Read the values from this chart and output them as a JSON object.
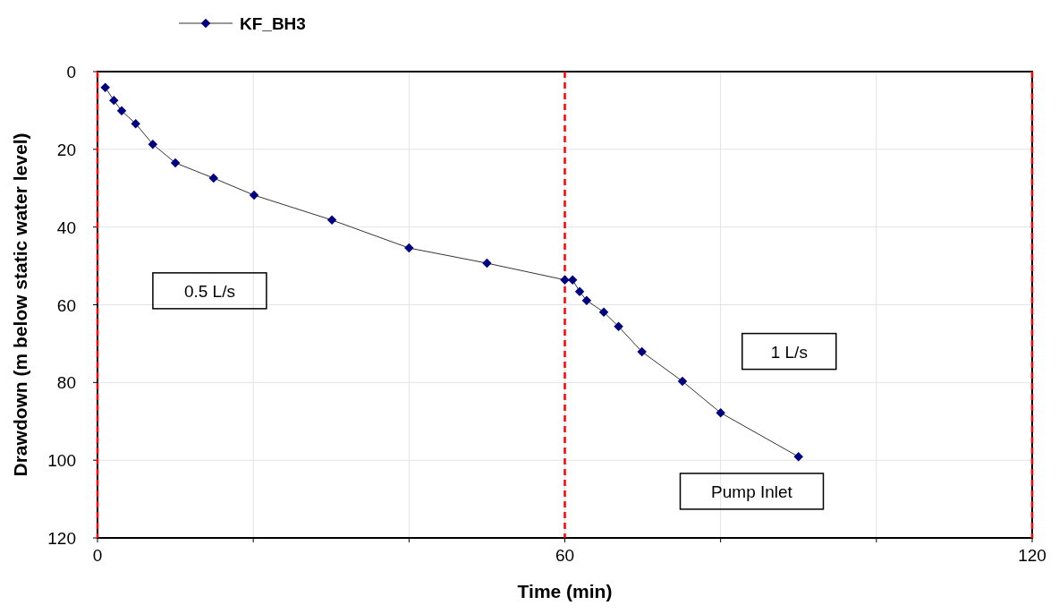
{
  "chart_data": {
    "type": "line",
    "xlabel": "Time (min)",
    "ylabel": "Drawdown (m below static water level)",
    "x": [
      1.0,
      2.1,
      3.1,
      4.9,
      7.1,
      10,
      14.9,
      20.1,
      30.1,
      40,
      50,
      60,
      61,
      61.9,
      62.8,
      65,
      66.9,
      69.9,
      75.1,
      80,
      90
    ],
    "series": [
      {
        "name": "KF_BH3",
        "color": "#000080",
        "values": [
          4.1,
          7.4,
          10.1,
          13.4,
          18.7,
          23.5,
          27.4,
          31.8,
          38.2,
          45.4,
          49.3,
          53.6,
          53.6,
          56.6,
          58.9,
          61.9,
          65.6,
          72.1,
          79.7,
          87.8,
          99.1
        ]
      }
    ],
    "xlim": [
      0,
      120
    ],
    "xticks": [
      0,
      {
        "value": 20,
        "label": null
      },
      {
        "value": 40,
        "label": null
      },
      60,
      {
        "value": 80,
        "label": null
      },
      {
        "value": 100,
        "label": null
      },
      120
    ],
    "ylim": [
      120,
      0
    ],
    "yticks": [
      0,
      20,
      40,
      60,
      80,
      100,
      120
    ],
    "grid": true,
    "legend": "top left",
    "marker": "diamond",
    "line_style": "solid",
    "ref_lines": [
      {
        "axis": "x",
        "value": 0,
        "color": "#ff0000",
        "line_style": "dashed"
      },
      {
        "axis": "x",
        "value": 60,
        "color": "#ff0000",
        "line_style": "dashed"
      },
      {
        "axis": "x",
        "value": 120,
        "color": "#ff0000",
        "line_style": "dashed"
      }
    ],
    "annotations": [
      "0.5 L/s",
      "1 L/s",
      "Pump Inlet"
    ]
  }
}
